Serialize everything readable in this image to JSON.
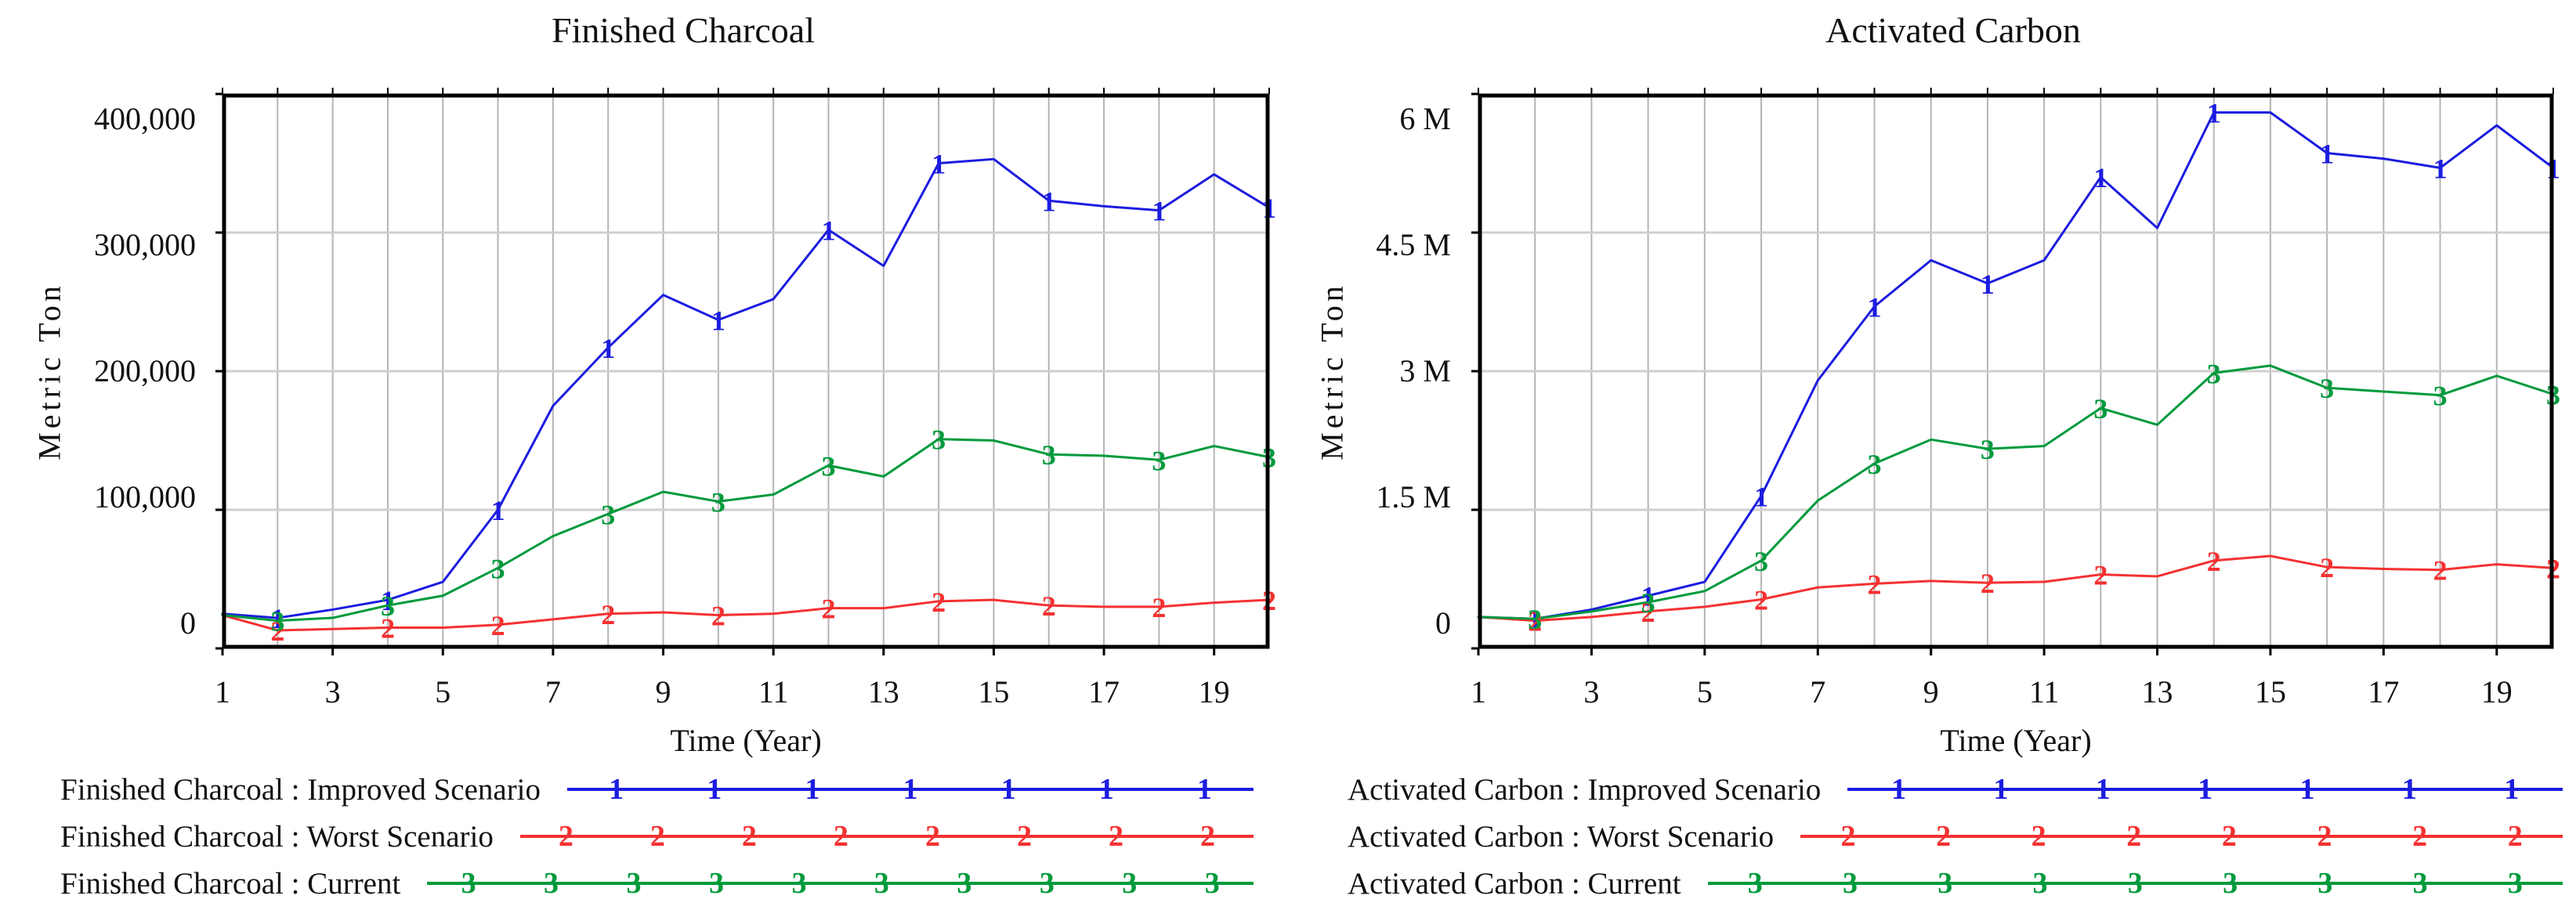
{
  "chart_data": [
    {
      "type": "line",
      "title": "Finished Charcoal",
      "xlabel": "Time (Year)",
      "ylabel": "Metric Ton",
      "x": [
        1,
        2,
        3,
        4,
        5,
        6,
        7,
        8,
        9,
        10,
        11,
        12,
        13,
        14,
        15,
        16,
        17,
        18,
        19,
        20
      ],
      "xticks": [
        1,
        3,
        5,
        7,
        9,
        11,
        13,
        15,
        17,
        19
      ],
      "ylim": [
        0,
        400000
      ],
      "yticks": [
        {
          "value": 400000,
          "label": "400,000"
        },
        {
          "value": 300000,
          "label": "300,000"
        },
        {
          "value": 200000,
          "label": "200,000"
        },
        {
          "value": 100000,
          "label": "100,000"
        },
        {
          "value": 0,
          "label": "0"
        }
      ],
      "grid": true,
      "legend_position": "below-left",
      "marker_years": [
        2,
        4,
        6,
        8,
        10,
        12,
        14,
        16,
        18,
        20
      ],
      "series": [
        {
          "name": "Finished Charcoal : Improved Scenario",
          "marker": "1",
          "color": "#1c1ce0",
          "legend_markers": 7,
          "values": [
            25000,
            22000,
            28000,
            35000,
            48000,
            100000,
            175000,
            217000,
            255000,
            237000,
            252000,
            302000,
            276000,
            350000,
            353000,
            323000,
            319000,
            316000,
            342000,
            318000
          ]
        },
        {
          "name": "Finished Charcoal : Worst Scenario",
          "marker": "2",
          "color": "#f53131",
          "legend_markers": 8,
          "values": [
            24000,
            13000,
            14000,
            15000,
            15000,
            17000,
            21000,
            25000,
            26000,
            24000,
            25000,
            29000,
            29000,
            34000,
            35000,
            31000,
            30000,
            30000,
            33000,
            35000
          ]
        },
        {
          "name": "Finished Charcoal : Current",
          "marker": "3",
          "color": "#009a3c",
          "legend_markers": 10,
          "values": [
            24000,
            20000,
            22000,
            31000,
            38000,
            58000,
            81000,
            97000,
            113000,
            106000,
            111000,
            132000,
            124000,
            151000,
            150000,
            140000,
            139000,
            136000,
            146000,
            138000
          ]
        }
      ]
    },
    {
      "type": "line",
      "title": "Activated Carbon",
      "xlabel": "Time (Year)",
      "ylabel": "Metric Ton",
      "x": [
        1,
        2,
        3,
        4,
        5,
        6,
        7,
        8,
        9,
        10,
        11,
        12,
        13,
        14,
        15,
        16,
        17,
        18,
        19,
        20
      ],
      "xticks": [
        1,
        3,
        5,
        7,
        9,
        11,
        13,
        15,
        17,
        19
      ],
      "ylim": [
        0,
        6000000
      ],
      "yticks": [
        {
          "value": 6000000,
          "label": "6 M"
        },
        {
          "value": 4500000,
          "label": "4.5 M"
        },
        {
          "value": 3000000,
          "label": "3 M"
        },
        {
          "value": 1500000,
          "label": "1.5 M"
        },
        {
          "value": 0,
          "label": "0"
        }
      ],
      "grid": true,
      "legend_position": "below-left",
      "marker_years": [
        2,
        4,
        6,
        8,
        10,
        12,
        14,
        16,
        18,
        20
      ],
      "series": [
        {
          "name": "Activated Carbon : Improved Scenario",
          "marker": "1",
          "color": "#1c1ce0",
          "legend_markers": 7,
          "values": [
            340000,
            320000,
            420000,
            570000,
            720000,
            1650000,
            2900000,
            3700000,
            4200000,
            3950000,
            4200000,
            5100000,
            4550000,
            5800000,
            5800000,
            5360000,
            5300000,
            5200000,
            5660000,
            5200000
          ]
        },
        {
          "name": "Activated Carbon : Worst Scenario",
          "marker": "2",
          "color": "#f53131",
          "legend_markers": 8,
          "values": [
            340000,
            300000,
            340000,
            400000,
            450000,
            530000,
            660000,
            700000,
            730000,
            710000,
            720000,
            800000,
            780000,
            950000,
            1000000,
            880000,
            860000,
            850000,
            910000,
            870000
          ]
        },
        {
          "name": "Activated Carbon : Current",
          "marker": "3",
          "color": "#009a3c",
          "legend_markers": 9,
          "values": [
            340000,
            320000,
            400000,
            500000,
            620000,
            950000,
            1600000,
            2000000,
            2260000,
            2160000,
            2190000,
            2600000,
            2420000,
            2980000,
            3060000,
            2820000,
            2780000,
            2740000,
            2950000,
            2750000
          ]
        }
      ]
    }
  ],
  "style": {
    "series_blue": "#1c1ce0",
    "series_red": "#f53131",
    "series_green": "#009a3c",
    "grid_vertical": "#b4b4b4",
    "grid_horizontal": "#cfcfcf",
    "axis_border": "#000000"
  }
}
